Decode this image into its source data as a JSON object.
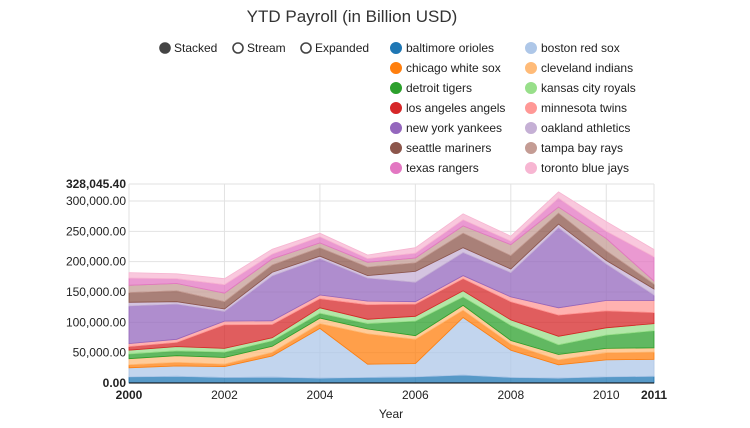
{
  "chart_data": {
    "type": "area",
    "title": "YTD Payroll (in Billion USD)",
    "xlabel": "Year",
    "ylabel": "",
    "x": [
      2000,
      2001,
      2002,
      2003,
      2004,
      2005,
      2006,
      2007,
      2008,
      2009,
      2010,
      2011
    ],
    "xlim": [
      2000,
      2011
    ],
    "ylim": [
      0,
      328045.4
    ],
    "x_ticks": [
      "2000",
      "2002",
      "2004",
      "2006",
      "2008",
      "2010",
      "2011"
    ],
    "y_ticks": [
      "0.00",
      "50,000.00",
      "100,000.00",
      "150,000.00",
      "200,000.00",
      "250,000.00",
      "300,000.00",
      "328,045.40"
    ],
    "stacked": true,
    "grid": true,
    "legend_position": "top",
    "controls": {
      "options": [
        "Stacked",
        "Stream",
        "Expanded"
      ],
      "selected": "Stacked"
    },
    "series": [
      {
        "name": "baltimore orioles",
        "color": "#1f77b4",
        "values": [
          10000,
          11000,
          9000,
          9500,
          8000,
          9000,
          10000,
          13000,
          9000,
          8000,
          10000,
          11000
        ]
      },
      {
        "name": "boston red sox",
        "color": "#aec7e8",
        "values": [
          15000,
          17000,
          18000,
          35000,
          82000,
          22000,
          22000,
          95000,
          45000,
          22000,
          28000,
          28000
        ]
      },
      {
        "name": "chicago white sox",
        "color": "#ff7f0e",
        "values": [
          5000,
          6000,
          4000,
          6000,
          8000,
          50000,
          40000,
          12000,
          10000,
          8000,
          12000,
          12000
        ]
      },
      {
        "name": "cleveland indians",
        "color": "#ffbb78",
        "values": [
          10000,
          11000,
          11000,
          10000,
          9000,
          8000,
          6000,
          8000,
          6000,
          9000,
          7000,
          7000
        ]
      },
      {
        "name": "detroit tigers",
        "color": "#2ca02c",
        "values": [
          8000,
          8000,
          9000,
          9000,
          8000,
          9000,
          24000,
          14000,
          25000,
          16000,
          22000,
          28000
        ]
      },
      {
        "name": "kansas city royals",
        "color": "#98df8a",
        "values": [
          6000,
          7000,
          6000,
          5000,
          9000,
          7000,
          8000,
          10000,
          9000,
          14000,
          12000,
          12000
        ]
      },
      {
        "name": "los angeles angels",
        "color": "#d62728",
        "values": [
          6000,
          7000,
          39000,
          22000,
          15000,
          24000,
          20000,
          20000,
          30000,
          35000,
          28000,
          18000
        ]
      },
      {
        "name": "minnesota twins",
        "color": "#ff9896",
        "values": [
          5000,
          5000,
          6000,
          6000,
          6000,
          6000,
          4000,
          5000,
          8000,
          12000,
          17000,
          20000
        ]
      },
      {
        "name": "new york yankees",
        "color": "#9467bd",
        "values": [
          62000,
          58000,
          16000,
          74000,
          60000,
          38000,
          32000,
          38000,
          40000,
          132000,
          60000,
          9000
        ]
      },
      {
        "name": "oakland athletics",
        "color": "#c5b0d5",
        "values": [
          6000,
          4000,
          4000,
          6000,
          4000,
          4000,
          18000,
          8000,
          6000,
          6000,
          6000,
          10000
        ]
      },
      {
        "name": "seattle mariners",
        "color": "#8c564b",
        "values": [
          16000,
          18000,
          12000,
          12000,
          14000,
          14000,
          14000,
          24000,
          22000,
          18000,
          16000,
          8000
        ]
      },
      {
        "name": "tampa bay rays",
        "color": "#c49c94",
        "values": [
          12000,
          12000,
          14000,
          10000,
          8000,
          8000,
          8000,
          12000,
          18000,
          10000,
          20000,
          5000
        ]
      },
      {
        "name": "texas rangers",
        "color": "#e377c2",
        "values": [
          12000,
          8000,
          14000,
          8000,
          10000,
          6000,
          8000,
          10000,
          6000,
          15000,
          12000,
          40000
        ]
      },
      {
        "name": "toronto blue jays",
        "color": "#f7b6d2",
        "values": [
          9000,
          8000,
          10000,
          8000,
          6000,
          6000,
          9000,
          10000,
          8000,
          10000,
          16000,
          12000
        ]
      }
    ]
  }
}
